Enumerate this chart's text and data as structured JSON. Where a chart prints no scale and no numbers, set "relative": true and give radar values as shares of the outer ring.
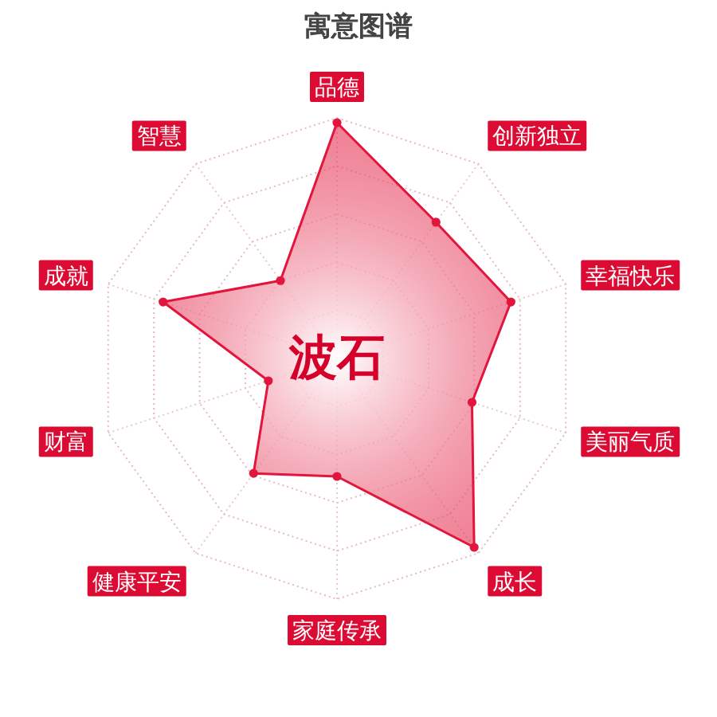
{
  "chart_data": {
    "type": "radar",
    "title": "寓意图谱",
    "categories": [
      "品德",
      "创新独立",
      "幸福快乐",
      "美丽气质",
      "成长",
      "家庭传承",
      "健康平安",
      "财富",
      "成就",
      "智慧"
    ],
    "relative": true,
    "series": [
      {
        "color": "#e2163c",
        "values": [
          0.98,
          0.7,
          0.76,
          0.59,
          0.97,
          0.49,
          0.59,
          0.3,
          0.76,
          0.4
        ]
      }
    ],
    "annotations": [
      "波石"
    ],
    "grid": true,
    "marker": "circle"
  }
}
